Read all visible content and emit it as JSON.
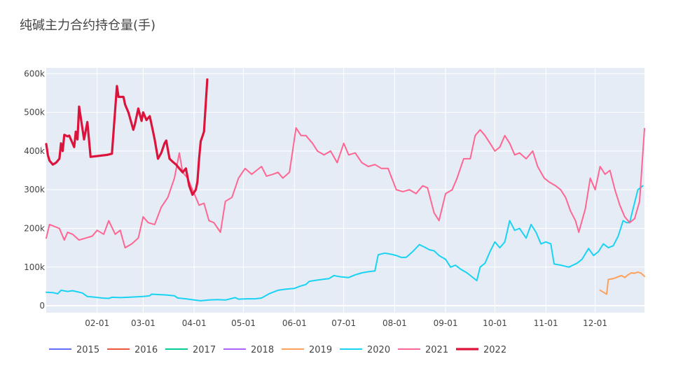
{
  "chart_data": {
    "type": "line",
    "title": "纯碱主力合约持仓量(手)",
    "xlabel": "",
    "ylabel": "",
    "x_domain": [
      "01-01",
      "12-31"
    ],
    "x_ticks": [
      "02-01",
      "03-01",
      "04-01",
      "05-01",
      "06-01",
      "07-01",
      "08-01",
      "09-01",
      "10-01",
      "11-01",
      "12-01"
    ],
    "y_ticks": [
      "0",
      "100k",
      "200k",
      "300k",
      "400k",
      "500k",
      "600k"
    ],
    "ylim": [
      -18000,
      615000
    ],
    "grid": true,
    "legend_position": "bottom",
    "series": [
      {
        "name": "2015",
        "color": "#636efa",
        "points": []
      },
      {
        "name": "2016",
        "color": "#ef553b",
        "points": []
      },
      {
        "name": "2017",
        "color": "#00cc96",
        "points": []
      },
      {
        "name": "2018",
        "color": "#ab63fa",
        "points": []
      },
      {
        "name": "2019",
        "color": "#ffa15a",
        "points": [
          [
            "12-04",
            40000
          ],
          [
            "12-06",
            35000
          ],
          [
            "12-08",
            30000
          ],
          [
            "12-09",
            68000
          ],
          [
            "12-12",
            70000
          ],
          [
            "12-15",
            75000
          ],
          [
            "12-17",
            78000
          ],
          [
            "12-19",
            73000
          ],
          [
            "12-21",
            80000
          ],
          [
            "12-23",
            85000
          ],
          [
            "12-25",
            84000
          ],
          [
            "12-27",
            87000
          ],
          [
            "12-29",
            84000
          ],
          [
            "12-31",
            76000
          ]
        ]
      },
      {
        "name": "2020",
        "color": "#19d3f3",
        "points": [
          [
            "01-01",
            35000
          ],
          [
            "01-05",
            34000
          ],
          [
            "01-08",
            31000
          ],
          [
            "01-10",
            40000
          ],
          [
            "01-14",
            37000
          ],
          [
            "01-17",
            39000
          ],
          [
            "01-20",
            36000
          ],
          [
            "01-23",
            33000
          ],
          [
            "01-26",
            24000
          ],
          [
            "01-31",
            22000
          ],
          [
            "02-04",
            20000
          ],
          [
            "02-08",
            19000
          ],
          [
            "02-10",
            22000
          ],
          [
            "02-15",
            21000
          ],
          [
            "02-20",
            22000
          ],
          [
            "02-25",
            23000
          ],
          [
            "03-01",
            24000
          ],
          [
            "03-05",
            26000
          ],
          [
            "03-06",
            30000
          ],
          [
            "03-10",
            29000
          ],
          [
            "03-15",
            28000
          ],
          [
            "03-20",
            26000
          ],
          [
            "03-22",
            20000
          ],
          [
            "03-27",
            18000
          ],
          [
            "04-01",
            15000
          ],
          [
            "04-05",
            13000
          ],
          [
            "04-10",
            15000
          ],
          [
            "04-15",
            16000
          ],
          [
            "04-20",
            15000
          ],
          [
            "04-23",
            18000
          ],
          [
            "04-26",
            21000
          ],
          [
            "04-28",
            17000
          ],
          [
            "05-03",
            18000
          ],
          [
            "05-08",
            18000
          ],
          [
            "05-12",
            20000
          ],
          [
            "05-17",
            32000
          ],
          [
            "05-22",
            40000
          ],
          [
            "05-27",
            43000
          ],
          [
            "06-01",
            45000
          ],
          [
            "06-04",
            50000
          ],
          [
            "06-08",
            55000
          ],
          [
            "06-10",
            63000
          ],
          [
            "06-14",
            66000
          ],
          [
            "06-18",
            68000
          ],
          [
            "06-22",
            70000
          ],
          [
            "06-25",
            78000
          ],
          [
            "06-29",
            75000
          ],
          [
            "07-04",
            73000
          ],
          [
            "07-08",
            80000
          ],
          [
            "07-12",
            85000
          ],
          [
            "07-16",
            88000
          ],
          [
            "07-20",
            90000
          ],
          [
            "07-22",
            132000
          ],
          [
            "07-26",
            136000
          ],
          [
            "07-30",
            133000
          ],
          [
            "08-02",
            130000
          ],
          [
            "08-05",
            125000
          ],
          [
            "08-08",
            125000
          ],
          [
            "08-12",
            140000
          ],
          [
            "08-16",
            158000
          ],
          [
            "08-19",
            152000
          ],
          [
            "08-22",
            145000
          ],
          [
            "08-25",
            142000
          ],
          [
            "08-28",
            130000
          ],
          [
            "09-01",
            120000
          ],
          [
            "09-04",
            100000
          ],
          [
            "09-07",
            105000
          ],
          [
            "09-10",
            95000
          ],
          [
            "09-14",
            85000
          ],
          [
            "09-17",
            75000
          ],
          [
            "09-20",
            65000
          ],
          [
            "09-22",
            100000
          ],
          [
            "09-25",
            110000
          ],
          [
            "09-28",
            140000
          ],
          [
            "10-01",
            165000
          ],
          [
            "10-04",
            150000
          ],
          [
            "10-07",
            165000
          ],
          [
            "10-10",
            220000
          ],
          [
            "10-13",
            195000
          ],
          [
            "10-16",
            200000
          ],
          [
            "10-20",
            175000
          ],
          [
            "10-23",
            210000
          ],
          [
            "10-26",
            190000
          ],
          [
            "10-29",
            160000
          ],
          [
            "11-01",
            165000
          ],
          [
            "11-04",
            160000
          ],
          [
            "11-06",
            108000
          ],
          [
            "11-10",
            105000
          ],
          [
            "11-15",
            100000
          ],
          [
            "11-20",
            110000
          ],
          [
            "11-23",
            120000
          ],
          [
            "11-27",
            148000
          ],
          [
            "11-30",
            130000
          ],
          [
            "12-03",
            140000
          ],
          [
            "12-06",
            160000
          ],
          [
            "12-09",
            150000
          ],
          [
            "12-12",
            155000
          ],
          [
            "12-15",
            180000
          ],
          [
            "12-18",
            220000
          ],
          [
            "12-20",
            215000
          ],
          [
            "12-22",
            215000
          ],
          [
            "12-24",
            250000
          ],
          [
            "12-27",
            300000
          ],
          [
            "12-30",
            310000
          ]
        ]
      },
      {
        "name": "2021",
        "color": "#ff6692",
        "points": [
          [
            "01-01",
            175000
          ],
          [
            "01-03",
            210000
          ],
          [
            "01-06",
            205000
          ],
          [
            "01-09",
            200000
          ],
          [
            "01-12",
            170000
          ],
          [
            "01-14",
            190000
          ],
          [
            "01-17",
            185000
          ],
          [
            "01-21",
            170000
          ],
          [
            "01-25",
            175000
          ],
          [
            "01-29",
            180000
          ],
          [
            "02-01",
            195000
          ],
          [
            "02-05",
            185000
          ],
          [
            "02-08",
            220000
          ],
          [
            "02-12",
            185000
          ],
          [
            "02-15",
            195000
          ],
          [
            "02-18",
            150000
          ],
          [
            "02-22",
            160000
          ],
          [
            "02-26",
            175000
          ],
          [
            "03-01",
            230000
          ],
          [
            "03-04",
            215000
          ],
          [
            "03-08",
            210000
          ],
          [
            "03-12",
            255000
          ],
          [
            "03-16",
            280000
          ],
          [
            "03-20",
            330000
          ],
          [
            "03-23",
            395000
          ],
          [
            "03-25",
            345000
          ],
          [
            "03-28",
            330000
          ],
          [
            "04-01",
            290000
          ],
          [
            "04-04",
            260000
          ],
          [
            "04-07",
            265000
          ],
          [
            "04-10",
            220000
          ],
          [
            "04-13",
            215000
          ],
          [
            "04-17",
            190000
          ],
          [
            "04-20",
            270000
          ],
          [
            "04-24",
            280000
          ],
          [
            "04-28",
            330000
          ],
          [
            "05-02",
            355000
          ],
          [
            "05-06",
            340000
          ],
          [
            "05-09",
            350000
          ],
          [
            "05-12",
            360000
          ],
          [
            "05-15",
            335000
          ],
          [
            "05-19",
            340000
          ],
          [
            "05-22",
            345000
          ],
          [
            "05-25",
            330000
          ],
          [
            "05-29",
            345000
          ],
          [
            "06-02",
            460000
          ],
          [
            "06-05",
            440000
          ],
          [
            "06-08",
            440000
          ],
          [
            "06-12",
            420000
          ],
          [
            "06-15",
            400000
          ],
          [
            "06-19",
            390000
          ],
          [
            "06-23",
            400000
          ],
          [
            "06-27",
            370000
          ],
          [
            "07-01",
            420000
          ],
          [
            "07-04",
            390000
          ],
          [
            "07-08",
            395000
          ],
          [
            "07-12",
            370000
          ],
          [
            "07-16",
            360000
          ],
          [
            "07-20",
            365000
          ],
          [
            "07-24",
            355000
          ],
          [
            "07-28",
            355000
          ],
          [
            "08-02",
            300000
          ],
          [
            "08-06",
            295000
          ],
          [
            "08-10",
            300000
          ],
          [
            "08-14",
            290000
          ],
          [
            "08-18",
            310000
          ],
          [
            "08-21",
            305000
          ],
          [
            "08-25",
            240000
          ],
          [
            "08-28",
            220000
          ],
          [
            "09-01",
            290000
          ],
          [
            "09-05",
            300000
          ],
          [
            "09-08",
            330000
          ],
          [
            "09-12",
            380000
          ],
          [
            "09-16",
            380000
          ],
          [
            "09-19",
            440000
          ],
          [
            "09-22",
            455000
          ],
          [
            "09-25",
            440000
          ],
          [
            "09-28",
            420000
          ],
          [
            "10-01",
            400000
          ],
          [
            "10-04",
            410000
          ],
          [
            "10-07",
            440000
          ],
          [
            "10-10",
            420000
          ],
          [
            "10-13",
            390000
          ],
          [
            "10-16",
            395000
          ],
          [
            "10-20",
            380000
          ],
          [
            "10-24",
            400000
          ],
          [
            "10-27",
            360000
          ],
          [
            "10-31",
            330000
          ],
          [
            "11-03",
            320000
          ],
          [
            "11-07",
            310000
          ],
          [
            "11-10",
            300000
          ],
          [
            "11-13",
            280000
          ],
          [
            "11-16",
            245000
          ],
          [
            "11-19",
            220000
          ],
          [
            "11-21",
            190000
          ],
          [
            "11-25",
            250000
          ],
          [
            "11-28",
            330000
          ],
          [
            "12-01",
            300000
          ],
          [
            "12-04",
            360000
          ],
          [
            "12-07",
            340000
          ],
          [
            "12-10",
            350000
          ],
          [
            "12-13",
            300000
          ],
          [
            "12-16",
            260000
          ],
          [
            "12-19",
            230000
          ],
          [
            "12-22",
            215000
          ],
          [
            "12-25",
            225000
          ],
          [
            "12-28",
            270000
          ],
          [
            "12-31",
            458000
          ]
        ]
      },
      {
        "name": "2022",
        "color": "#dc143c",
        "bold": true,
        "points": [
          [
            "01-01",
            418000
          ],
          [
            "01-02",
            390000
          ],
          [
            "01-03",
            375000
          ],
          [
            "01-05",
            365000
          ],
          [
            "01-07",
            370000
          ],
          [
            "01-09",
            380000
          ],
          [
            "01-10",
            420000
          ],
          [
            "01-11",
            400000
          ],
          [
            "01-12",
            442000
          ],
          [
            "01-14",
            438000
          ],
          [
            "01-15",
            440000
          ],
          [
            "01-18",
            410000
          ],
          [
            "01-19",
            450000
          ],
          [
            "01-20",
            430000
          ],
          [
            "01-21",
            515000
          ],
          [
            "01-24",
            430000
          ],
          [
            "01-26",
            475000
          ],
          [
            "01-28",
            385000
          ],
          [
            "02-07",
            390000
          ],
          [
            "02-10",
            393000
          ],
          [
            "02-13",
            568000
          ],
          [
            "02-14",
            540000
          ],
          [
            "02-17",
            540000
          ],
          [
            "02-18",
            520000
          ],
          [
            "02-20",
            500000
          ],
          [
            "02-23",
            455000
          ],
          [
            "02-24",
            470000
          ],
          [
            "02-26",
            510000
          ],
          [
            "02-28",
            478000
          ],
          [
            "03-01",
            500000
          ],
          [
            "03-03",
            480000
          ],
          [
            "03-05",
            490000
          ],
          [
            "03-07",
            450000
          ],
          [
            "03-08",
            430000
          ],
          [
            "03-10",
            380000
          ],
          [
            "03-12",
            395000
          ],
          [
            "03-14",
            420000
          ],
          [
            "03-15",
            427000
          ],
          [
            "03-17",
            380000
          ],
          [
            "03-19",
            372000
          ],
          [
            "03-21",
            365000
          ],
          [
            "03-23",
            355000
          ],
          [
            "03-25",
            345000
          ],
          [
            "03-27",
            355000
          ],
          [
            "03-29",
            310000
          ],
          [
            "03-31",
            287000
          ],
          [
            "04-02",
            300000
          ],
          [
            "04-03",
            320000
          ],
          [
            "04-04",
            380000
          ],
          [
            "04-05",
            425000
          ],
          [
            "04-07",
            450000
          ],
          [
            "04-09",
            585000
          ]
        ]
      }
    ]
  }
}
